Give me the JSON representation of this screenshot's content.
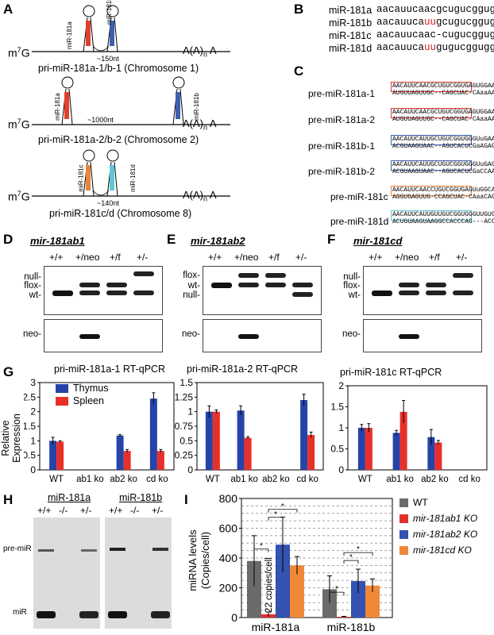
{
  "panels": {
    "A": "A",
    "B": "B",
    "C": "C",
    "D": "D",
    "E": "E",
    "F": "F",
    "G": "G",
    "H": "H",
    "I": "I"
  },
  "panel_a": {
    "constructs": [
      {
        "name": "pri-miR-181a-1/b-1 (Chromosome 1)",
        "left_mir": "miR-181a",
        "right_mir": "miR-181b",
        "spacing": "~150nt",
        "cap": "m",
        "cap_sup": "7",
        "cap_g": "G",
        "tail": "A(A)",
        "tail_sub": "n",
        "tail_end": "A",
        "left_color": "#e0412e",
        "right_color": "#3d5fae"
      },
      {
        "name": "pri-miR-181a-2/b-2 (Chromosome 2)",
        "left_mir": "miR-181a",
        "right_mir": "miR-181b",
        "spacing": "~1000nt",
        "cap": "m",
        "cap_sup": "7",
        "cap_g": "G",
        "tail": "A(A)",
        "tail_sub": "n",
        "tail_end": "A",
        "left_color": "#e0412e",
        "right_color": "#3d5fae"
      },
      {
        "name": "pri-miR-181c/d (Chromosome 8)",
        "left_mir": "miR-181c",
        "right_mir": "miR-181d",
        "spacing": "~140nt",
        "cap": "m",
        "cap_sup": "7",
        "cap_g": "G",
        "tail": "A(A)",
        "tail_sub": "n",
        "tail_end": "A",
        "left_color": "#e8843a",
        "right_color": "#5cc8d6"
      }
    ]
  },
  "panel_b": {
    "rows": [
      {
        "name": "miR-181a",
        "pre": "aacauucaacgcugucggugagu",
        "hl": "",
        "post": "",
        "tail": ""
      },
      {
        "name": "miR-181b",
        "pre": "aacauuca",
        "hl": "uu",
        "post": "gcugucggugg",
        "hl2": "g",
        "tail": "u"
      },
      {
        "name": "miR-181c",
        "pre": "aacauucaac-cugucggugag",
        "hl": "u",
        "post": "",
        "tail": ""
      },
      {
        "name": "miR-181d",
        "pre": "aacauuca",
        "hl": "uu",
        "post": "gugucggugg",
        "hl2": "g",
        "tail": "u"
      }
    ]
  },
  "panel_c": {
    "items": [
      {
        "name": "pre-miR-181a-1",
        "top": "AACAUUCAACGCUGUCGGUGAGUGGAAUUC",
        "bottom": "AUGUUAGUUGC--CAGCUAC-CAaaAAUAAA",
        "box_color": "#d63a2e"
      },
      {
        "name": "pre-miR-181a-2",
        "top": "AACAUUCAACGCUGUCGGUGAGUGGAAUUC",
        "bottom": "AUGUUAGUUGC--CAGCUAC-CAaaAAAACAAA",
        "box_color": "#d63a2e"
      },
      {
        "name": "pre-miR-181b-1",
        "top": "AACAUUCAUUGCUGUCGGUGGGUuGAACUU",
        "bottom": "ACGUAAGUAAC--AGUCACUCGaAGAGUG",
        "box_color": "#3d5fae"
      },
      {
        "name": "pre-miR-181b-2",
        "top": "AACAUUCAUUGCUGUCGGUGGGUuGAGCUG",
        "bottom": "ACGUAAGUAAC--AGUCACUCGaCCAACU",
        "box_color": "#3d5fae"
      },
      {
        "name": "pre-miR-181c",
        "top": "AACAUUCAACCUGUCGGUGAGUuGGCAG",
        "bottom": "AGGUGAGUUG-CCAGCUAC-CAaaCAGACU",
        "box_color": "#e8843a"
      },
      {
        "name": "pre-miR-181d",
        "top": "AACAUUCAUUGUUGUCGGUGGGUUGUGAGGAG",
        "bottom": "ACUGUAAGUAAGGCCACCCAG---ACCAG",
        "box_color": "#5cc8d6"
      }
    ]
  },
  "gels": {
    "D": {
      "title": "mir-181ab1",
      "lanes": [
        "+/+",
        "+/neo",
        "+/f",
        "+/-"
      ],
      "bands": [
        "null-",
        "flox-",
        "wt-"
      ],
      "neo": "neo-"
    },
    "E": {
      "title": "mir-181ab2",
      "lanes": [
        "+/+",
        "+/neo",
        "+/f",
        "+/-"
      ],
      "bands": [
        "flox-",
        "wt-",
        "null-"
      ],
      "neo": "neo-"
    },
    "F": {
      "title": "mir-181cd",
      "lanes": [
        "+/+",
        "+/neo",
        "+/f",
        "+/-"
      ],
      "bands": [
        "null-",
        "flox-",
        "wt-"
      ],
      "neo": "neo-"
    }
  },
  "panel_g": {
    "ylabel_line1": "Relative",
    "ylabel_line2": "Expression",
    "legend": [
      "Thymus",
      "Spleen"
    ],
    "colors": {
      "thymus": "#2643a8",
      "spleen": "#e8302a"
    }
  },
  "chart_data": [
    {
      "type": "bar",
      "title": "pri-miR-181a-1 RT-qPCR",
      "categories": [
        "WT",
        "ab1 ko",
        "ab2 ko",
        "cd ko"
      ],
      "series": [
        {
          "name": "Thymus",
          "values": [
            1.0,
            0,
            1.18,
            2.45
          ],
          "errors": [
            0.12,
            0,
            0.03,
            0.2
          ]
        },
        {
          "name": "Spleen",
          "values": [
            0.97,
            0,
            0.65,
            0.65
          ],
          "errors": [
            0.03,
            0,
            0.05,
            0.05
          ]
        }
      ],
      "ylim": [
        0,
        3
      ],
      "yticks": [
        0,
        0.5,
        1,
        1.5,
        2,
        2.5,
        3
      ],
      "ytick_labels": [
        "0",
        "0.5",
        "1",
        "1.5",
        "2",
        "2.5",
        "3"
      ]
    },
    {
      "type": "bar",
      "title": "pri-miR-181a-2 RT-qPCR",
      "categories": [
        "WT",
        "ab1 ko",
        "ab2 ko",
        "cd ko"
      ],
      "series": [
        {
          "name": "Thymus",
          "values": [
            1.0,
            1.02,
            0,
            1.2
          ],
          "errors": [
            0.1,
            0.08,
            0,
            0.1
          ]
        },
        {
          "name": "Spleen",
          "values": [
            1.0,
            0.55,
            0,
            0.6
          ],
          "errors": [
            0.03,
            0.02,
            0,
            0.05
          ]
        }
      ],
      "ylim": [
        0,
        1.5
      ],
      "yticks": [
        0,
        0.25,
        0.5,
        0.75,
        1,
        1.25,
        1.5
      ],
      "ytick_labels": [
        "0",
        "0.25",
        "0.5",
        "0.75",
        "1",
        "1.25",
        "1.5"
      ]
    },
    {
      "type": "bar",
      "title": "pri-miR-181c RT-qPCR",
      "categories": [
        "WT",
        "ab1 ko",
        "ab2 ko",
        "cd ko"
      ],
      "series": [
        {
          "name": "Thymus",
          "values": [
            1.0,
            0.88,
            0.78,
            0
          ],
          "errors": [
            0.08,
            0.06,
            0.18,
            0
          ]
        },
        {
          "name": "Spleen",
          "values": [
            1.0,
            1.38,
            0.65,
            0
          ],
          "errors": [
            0.1,
            0.27,
            0.05,
            0
          ]
        }
      ],
      "ylim": [
        0,
        2
      ],
      "yticks": [
        0,
        0.5,
        1,
        1.5,
        2
      ],
      "ytick_labels": [
        "0",
        "0.5",
        "1",
        "1.5",
        "2"
      ]
    },
    {
      "type": "bar",
      "title": "",
      "ylabel": "miRNA levels (Copies/cell)",
      "categories": [
        "miR-181a",
        "miR-181b"
      ],
      "series": [
        {
          "name": "WT",
          "values": [
            380,
            190
          ],
          "errors": [
            170,
            90
          ]
        },
        {
          "name": "mir-181ab1 KO",
          "values": [
            22,
            5
          ],
          "errors": [
            15,
            3
          ]
        },
        {
          "name": "mir-181ab2 KO",
          "values": [
            490,
            245
          ],
          "errors": [
            185,
            80
          ]
        },
        {
          "name": "mir-181cd KO",
          "values": [
            350,
            215
          ],
          "errors": [
            60,
            45
          ]
        }
      ],
      "ylim": [
        0,
        800
      ],
      "yticks": [
        0,
        200,
        400,
        600,
        800
      ],
      "annotation": "22 copies/cell",
      "colors": [
        "#6b6b6b",
        "#e0302c",
        "#3452b0",
        "#f0883a"
      ]
    }
  ],
  "panel_h": {
    "left_title": "miR-181a",
    "right_title": "miR-181b",
    "lanes": [
      "+/+",
      "-/-",
      "+/-"
    ],
    "labels": [
      "pre-miR",
      "miR"
    ]
  },
  "panel_i": {
    "ylabel_line1": "miRNA levels",
    "ylabel_line2": "(Copies/cell)",
    "legend": [
      "WT",
      "mir-181ab1 KO",
      "mir-181ab2 KO",
      "mir-181cd KO"
    ],
    "star": "*"
  }
}
